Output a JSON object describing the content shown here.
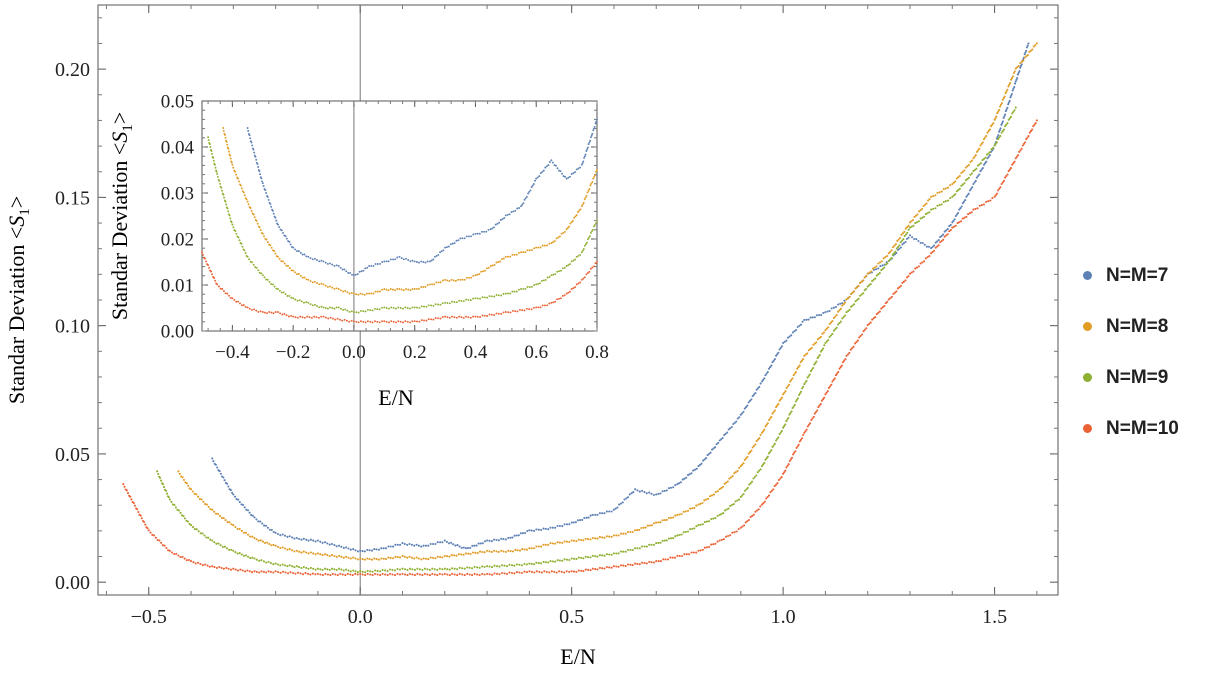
{
  "chart_data": [
    {
      "type": "scatter",
      "xlabel": "E/N",
      "ylabel": "Standar Deviation <S1>",
      "xlim": [
        -0.62,
        1.65
      ],
      "ylim": [
        -0.005,
        0.225
      ],
      "xticks": [
        -0.5,
        0.0,
        0.5,
        1.0,
        1.5
      ],
      "xtick_labels": [
        "−0.5",
        "0.0",
        "0.5",
        "1.0",
        "1.5"
      ],
      "yticks": [
        0.0,
        0.05,
        0.1,
        0.15,
        0.2
      ],
      "ytick_labels": [
        "0.00",
        "0.05",
        "0.10",
        "0.15",
        "0.20"
      ],
      "grid": false,
      "legend_position": "right",
      "series": [
        {
          "name": "N=M=7",
          "color": "#5e81b5",
          "x": [
            -0.35,
            -0.3,
            -0.25,
            -0.2,
            -0.15,
            -0.1,
            -0.05,
            0.0,
            0.05,
            0.1,
            0.15,
            0.2,
            0.25,
            0.3,
            0.35,
            0.4,
            0.45,
            0.5,
            0.55,
            0.6,
            0.65,
            0.7,
            0.75,
            0.8,
            0.85,
            0.9,
            0.95,
            1.0,
            1.05,
            1.1,
            1.15,
            1.2,
            1.25,
            1.3,
            1.35,
            1.4,
            1.45,
            1.5,
            1.55,
            1.58
          ],
          "y": [
            0.048,
            0.034,
            0.025,
            0.019,
            0.017,
            0.016,
            0.014,
            0.012,
            0.013,
            0.015,
            0.014,
            0.016,
            0.013,
            0.016,
            0.017,
            0.02,
            0.021,
            0.023,
            0.026,
            0.028,
            0.036,
            0.034,
            0.038,
            0.045,
            0.055,
            0.065,
            0.078,
            0.093,
            0.102,
            0.105,
            0.11,
            0.12,
            0.125,
            0.135,
            0.13,
            0.14,
            0.155,
            0.17,
            0.195,
            0.21
          ]
        },
        {
          "name": "N=M=8",
          "color": "#e19c24",
          "x": [
            -0.43,
            -0.4,
            -0.35,
            -0.3,
            -0.25,
            -0.2,
            -0.15,
            -0.1,
            -0.05,
            0.0,
            0.05,
            0.1,
            0.15,
            0.2,
            0.25,
            0.3,
            0.35,
            0.4,
            0.45,
            0.5,
            0.55,
            0.6,
            0.65,
            0.7,
            0.75,
            0.8,
            0.85,
            0.9,
            0.95,
            1.0,
            1.05,
            1.1,
            1.15,
            1.2,
            1.25,
            1.3,
            1.35,
            1.4,
            1.45,
            1.5,
            1.55,
            1.6
          ],
          "y": [
            0.043,
            0.036,
            0.028,
            0.022,
            0.017,
            0.014,
            0.012,
            0.011,
            0.01,
            0.009,
            0.009,
            0.01,
            0.009,
            0.01,
            0.011,
            0.012,
            0.012,
            0.013,
            0.015,
            0.016,
            0.017,
            0.018,
            0.02,
            0.023,
            0.026,
            0.03,
            0.036,
            0.045,
            0.058,
            0.073,
            0.088,
            0.098,
            0.11,
            0.12,
            0.128,
            0.14,
            0.15,
            0.155,
            0.165,
            0.18,
            0.2,
            0.21
          ]
        },
        {
          "name": "N=M=9",
          "color": "#8fb032",
          "x": [
            -0.48,
            -0.45,
            -0.4,
            -0.35,
            -0.3,
            -0.25,
            -0.2,
            -0.15,
            -0.1,
            -0.05,
            0.0,
            0.1,
            0.2,
            0.3,
            0.4,
            0.5,
            0.55,
            0.6,
            0.65,
            0.7,
            0.75,
            0.8,
            0.85,
            0.9,
            0.95,
            1.0,
            1.05,
            1.1,
            1.15,
            1.2,
            1.25,
            1.3,
            1.35,
            1.4,
            1.45,
            1.5,
            1.55
          ],
          "y": [
            0.043,
            0.032,
            0.022,
            0.016,
            0.012,
            0.009,
            0.007,
            0.006,
            0.005,
            0.005,
            0.004,
            0.005,
            0.005,
            0.006,
            0.007,
            0.009,
            0.01,
            0.011,
            0.013,
            0.015,
            0.018,
            0.022,
            0.026,
            0.033,
            0.045,
            0.06,
            0.077,
            0.093,
            0.105,
            0.115,
            0.125,
            0.138,
            0.145,
            0.15,
            0.16,
            0.17,
            0.185
          ]
        },
        {
          "name": "N=M=10",
          "color": "#eb6235",
          "x": [
            -0.56,
            -0.5,
            -0.45,
            -0.4,
            -0.35,
            -0.3,
            -0.25,
            -0.2,
            -0.1,
            0.0,
            0.1,
            0.2,
            0.3,
            0.4,
            0.5,
            0.6,
            0.7,
            0.8,
            0.85,
            0.9,
            0.95,
            1.0,
            1.05,
            1.1,
            1.15,
            1.2,
            1.25,
            1.3,
            1.35,
            1.4,
            1.45,
            1.5,
            1.55,
            1.6
          ],
          "y": [
            0.038,
            0.02,
            0.012,
            0.008,
            0.006,
            0.005,
            0.004,
            0.004,
            0.003,
            0.003,
            0.003,
            0.003,
            0.003,
            0.004,
            0.004,
            0.006,
            0.008,
            0.012,
            0.016,
            0.021,
            0.03,
            0.042,
            0.058,
            0.073,
            0.088,
            0.1,
            0.11,
            0.12,
            0.128,
            0.138,
            0.145,
            0.15,
            0.165,
            0.18
          ]
        }
      ]
    },
    {
      "type": "scatter",
      "xlabel": "E/N",
      "ylabel": "Standar Deviation <S1>",
      "xlim": [
        -0.5,
        0.8
      ],
      "ylim": [
        0.0,
        0.05
      ],
      "xticks": [
        -0.4,
        -0.2,
        0.0,
        0.2,
        0.4,
        0.6,
        0.8
      ],
      "xtick_labels": [
        "−0.4",
        "−0.2",
        "0.0",
        "0.2",
        "0.4",
        "0.6",
        "0.8"
      ],
      "yticks": [
        0.0,
        0.01,
        0.02,
        0.03,
        0.04,
        0.05
      ],
      "ytick_labels": [
        "0.00",
        "0.01",
        "0.02",
        "0.03",
        "0.04",
        "0.05"
      ],
      "grid": false,
      "series": [
        {
          "color": "#5e81b5",
          "x": [
            -0.35,
            -0.3,
            -0.25,
            -0.2,
            -0.15,
            -0.1,
            -0.05,
            0.0,
            0.05,
            0.1,
            0.15,
            0.2,
            0.25,
            0.3,
            0.35,
            0.4,
            0.45,
            0.5,
            0.55,
            0.6,
            0.65,
            0.7,
            0.75,
            0.8
          ],
          "y": [
            0.044,
            0.032,
            0.023,
            0.018,
            0.016,
            0.015,
            0.014,
            0.012,
            0.014,
            0.015,
            0.016,
            0.015,
            0.015,
            0.018,
            0.02,
            0.021,
            0.022,
            0.025,
            0.027,
            0.033,
            0.037,
            0.033,
            0.036,
            0.046
          ]
        },
        {
          "color": "#e19c24",
          "x": [
            -0.43,
            -0.4,
            -0.35,
            -0.3,
            -0.25,
            -0.2,
            -0.15,
            -0.1,
            -0.05,
            0.0,
            0.05,
            0.1,
            0.15,
            0.2,
            0.25,
            0.3,
            0.35,
            0.4,
            0.45,
            0.5,
            0.55,
            0.6,
            0.65,
            0.7,
            0.75,
            0.8
          ],
          "y": [
            0.044,
            0.036,
            0.028,
            0.021,
            0.016,
            0.013,
            0.011,
            0.01,
            0.009,
            0.008,
            0.008,
            0.009,
            0.009,
            0.009,
            0.01,
            0.011,
            0.011,
            0.012,
            0.014,
            0.016,
            0.017,
            0.018,
            0.019,
            0.022,
            0.027,
            0.035
          ]
        },
        {
          "color": "#8fb032",
          "x": [
            -0.48,
            -0.45,
            -0.4,
            -0.35,
            -0.3,
            -0.25,
            -0.2,
            -0.15,
            -0.1,
            -0.05,
            0.0,
            0.1,
            0.2,
            0.3,
            0.4,
            0.5,
            0.55,
            0.6,
            0.65,
            0.7,
            0.75,
            0.8
          ],
          "y": [
            0.042,
            0.034,
            0.023,
            0.016,
            0.012,
            0.009,
            0.007,
            0.006,
            0.005,
            0.005,
            0.004,
            0.005,
            0.005,
            0.006,
            0.007,
            0.008,
            0.009,
            0.01,
            0.012,
            0.014,
            0.017,
            0.024
          ]
        },
        {
          "color": "#eb6235",
          "x": [
            -0.5,
            -0.45,
            -0.4,
            -0.35,
            -0.3,
            -0.25,
            -0.2,
            -0.1,
            0.0,
            0.1,
            0.2,
            0.3,
            0.4,
            0.5,
            0.6,
            0.65,
            0.7,
            0.75,
            0.8
          ],
          "y": [
            0.017,
            0.01,
            0.007,
            0.005,
            0.004,
            0.004,
            0.003,
            0.003,
            0.002,
            0.002,
            0.002,
            0.003,
            0.003,
            0.004,
            0.005,
            0.006,
            0.008,
            0.011,
            0.015
          ]
        }
      ]
    }
  ],
  "legend": [
    {
      "label": "N=M=7",
      "color": "#5e81b5"
    },
    {
      "label": "N=M=8",
      "color": "#e19c24"
    },
    {
      "label": "N=M=9",
      "color": "#8fb032"
    },
    {
      "label": "N=M=10",
      "color": "#eb6235"
    }
  ]
}
